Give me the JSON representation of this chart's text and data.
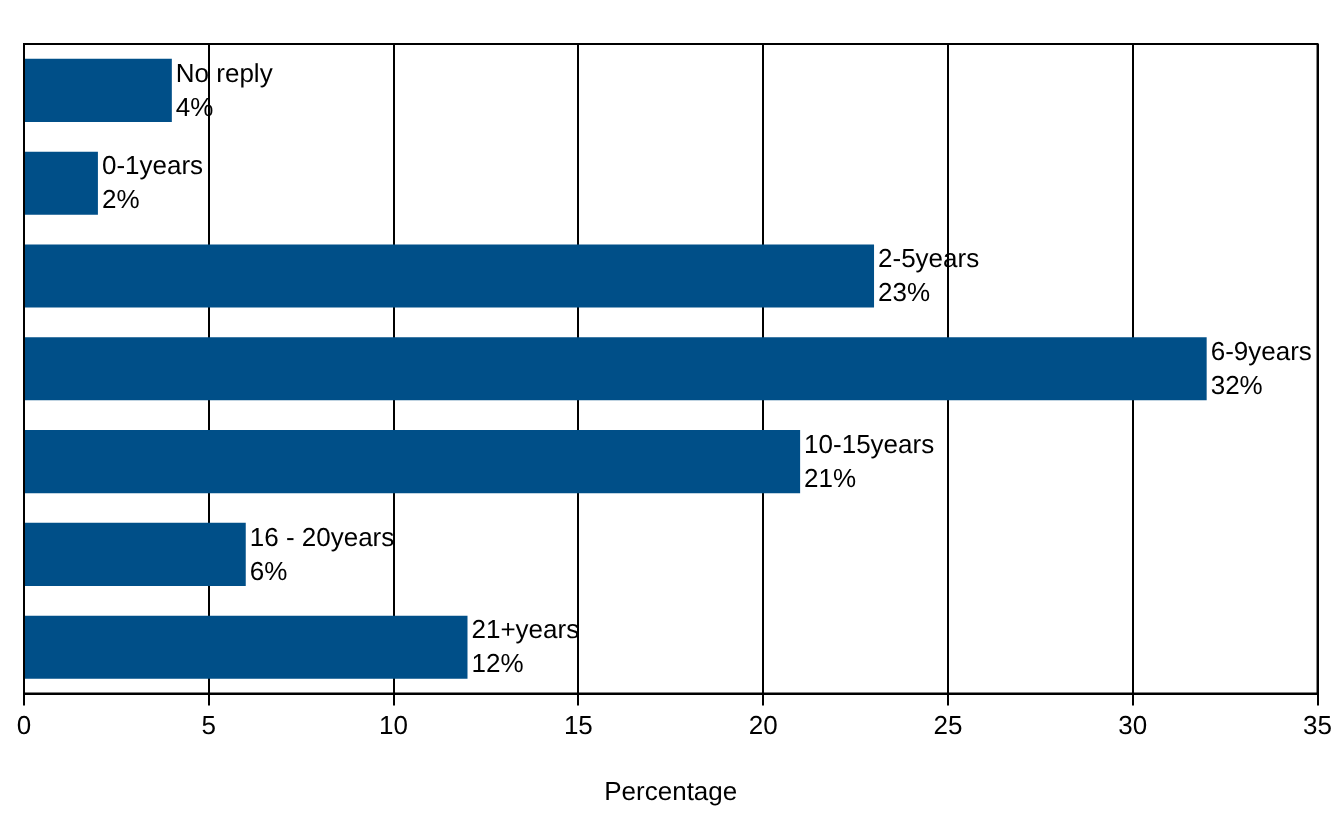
{
  "chart_data": {
    "type": "bar",
    "orientation": "horizontal",
    "xlabel": "Percentage",
    "categories": [
      "No reply",
      "0-1years",
      "2-5years",
      "6-9years",
      "10-15years",
      "16 - 20years",
      "21+years"
    ],
    "values": [
      4,
      2,
      23,
      32,
      21,
      6,
      12
    ],
    "value_labels": [
      "4%",
      "2%",
      "23%",
      "32%",
      "21%",
      "6%",
      "12%"
    ],
    "color": "#004f88",
    "xlim": [
      0,
      35
    ],
    "xticks": [
      0,
      5,
      10,
      15,
      20,
      25,
      30,
      35
    ],
    "grid": "x"
  }
}
